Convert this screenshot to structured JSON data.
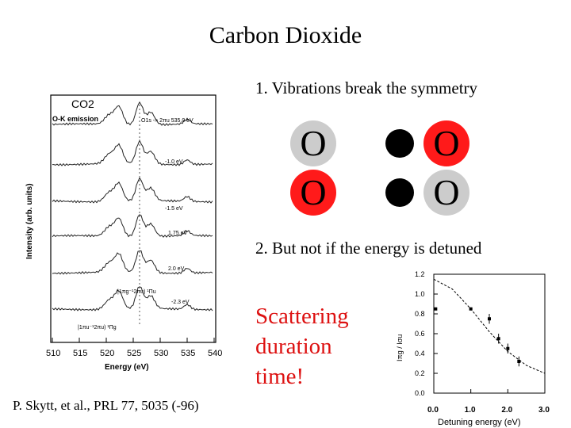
{
  "slide": {
    "title": "Carbon Dioxide",
    "point1": "1. Vibrations break the symmetry",
    "point2": "2. But not if the energy is detuned",
    "scatter_lines": [
      "Scattering",
      "duration",
      "time!"
    ],
    "citation": "P. Skytt, et al., PRL 77, 5035 (-96)"
  },
  "molecules": {
    "atom_label": "O",
    "atom_colors": {
      "red": "#ff1a1a",
      "light": "#cccccc"
    },
    "rows": [
      [
        "light",
        "bond",
        "red"
      ],
      [
        "red",
        "bond",
        "light"
      ]
    ]
  },
  "figure_left": {
    "title": "CO2",
    "subtitle": "O-K emission",
    "ylabel": "Intensity (arb. units)",
    "xlabel": "Energy (eV)",
    "xticks": [
      "510",
      "515",
      "520",
      "525",
      "530",
      "535",
      "540"
    ],
    "trace_labels": [
      "O1s -> 2πu 535.0 eV",
      "-1.0 eV",
      "-1.5 eV",
      "1.75 eV",
      "2.0 eV",
      "-2.3 eV"
    ],
    "annotations": [
      "|1πg⁻¹2πu) ¹Πu",
      "|1πu⁻¹2πu) ¹Πg"
    ]
  },
  "chart_data": {
    "type": "scatter",
    "xlabel": "Detuning energy (eV)",
    "ylabel": "Iπg / Iσu",
    "xlim": [
      0,
      3.0
    ],
    "ylim": [
      0.0,
      1.2
    ],
    "xticks": [
      "0.0",
      "1.0",
      "2.0",
      "3.0"
    ],
    "yticks": [
      "0.0",
      "0.2",
      "0.4",
      "0.6",
      "0.8",
      "1.0",
      "1.2"
    ],
    "points": [
      {
        "x": 0.05,
        "y": 0.85,
        "err": 0.0
      },
      {
        "x": 1.0,
        "y": 0.85,
        "err": 0.0
      },
      {
        "x": 1.5,
        "y": 0.75,
        "err": 0.05
      },
      {
        "x": 1.75,
        "y": 0.55,
        "err": 0.05
      },
      {
        "x": 2.0,
        "y": 0.45,
        "err": 0.05
      },
      {
        "x": 2.3,
        "y": 0.32,
        "err": 0.05
      }
    ],
    "curve": [
      [
        0,
        1.15
      ],
      [
        0.5,
        1.05
      ],
      [
        1.0,
        0.85
      ],
      [
        1.5,
        0.62
      ],
      [
        2.0,
        0.42
      ],
      [
        2.5,
        0.28
      ],
      [
        3.0,
        0.2
      ]
    ]
  }
}
